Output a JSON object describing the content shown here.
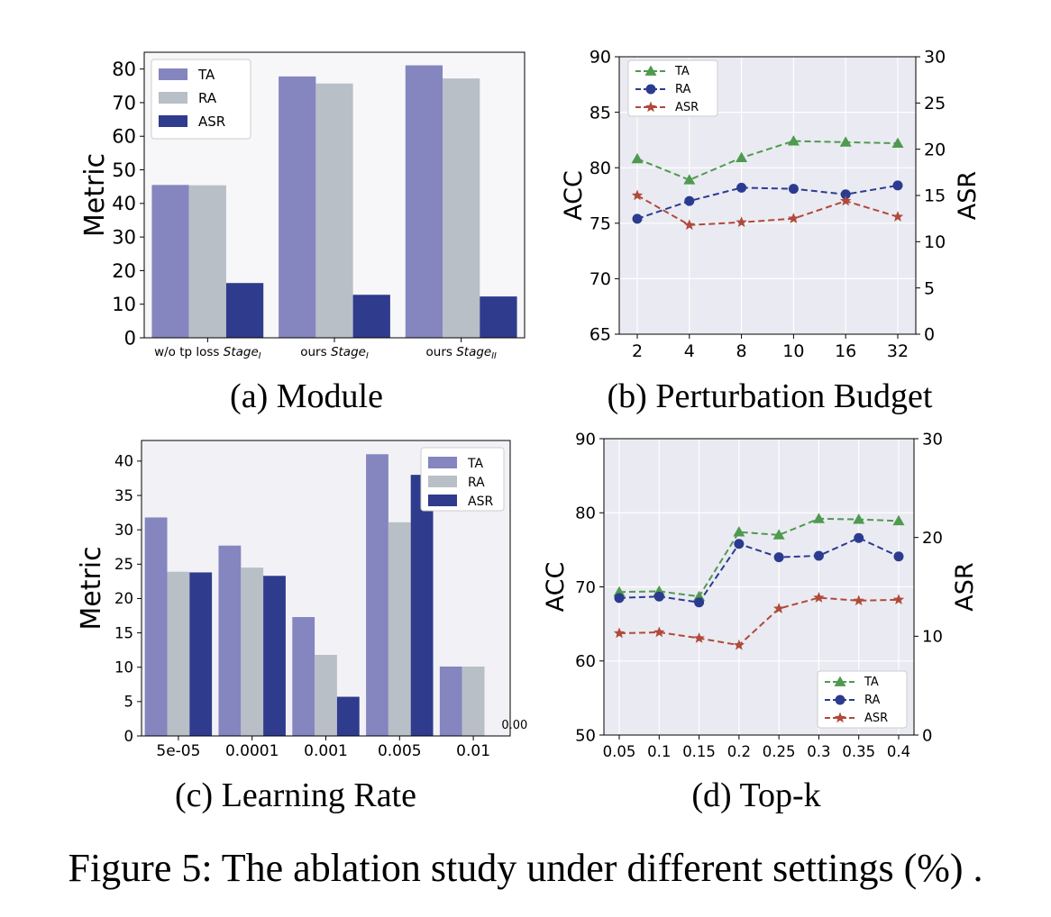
{
  "figure_caption": "Figure 5: The ablation study under different settings (%) .",
  "colors": {
    "ta_bar": "#8585bf",
    "ra_bar": "#b8bfc6",
    "asr_bar": "#2f3b8c",
    "ta_line": "#4f9a4f",
    "ra_line": "#2b3b8f",
    "asr_line": "#b04a3a",
    "line_bg": "#eaeaf2",
    "bar_bg_a": "#f7f7f9",
    "bar_bg_c": "#f2f2f6"
  },
  "chart_data": [
    {
      "id": "a",
      "type": "bar",
      "subcaption": "(a) Module",
      "ylabel": "Metric",
      "ylim": [
        0,
        85
      ],
      "yticks": [
        0,
        10,
        20,
        30,
        40,
        50,
        60,
        70,
        80
      ],
      "categories": [
        {
          "base": "w/o tp loss ",
          "italic": "Stage",
          "sub": "I"
        },
        {
          "base": "ours ",
          "italic": "Stage",
          "sub": "I"
        },
        {
          "base": "ours ",
          "italic": "Stage",
          "sub": "II"
        }
      ],
      "series": [
        {
          "name": "TA",
          "values": [
            45.5,
            77.8,
            81.1
          ]
        },
        {
          "name": "RA",
          "values": [
            45.4,
            75.7,
            77.2
          ]
        },
        {
          "name": "ASR",
          "values": [
            16.3,
            12.8,
            12.3
          ]
        }
      ],
      "legend": "top-left",
      "grid": false
    },
    {
      "id": "b",
      "type": "line",
      "subcaption": "(b) Perturbation Budget",
      "ylabel": "ACC",
      "y2label": "ASR",
      "x": [
        "2",
        "4",
        "8",
        "10",
        "16",
        "32"
      ],
      "ylim": [
        65,
        90
      ],
      "yticks": [
        65,
        70,
        75,
        80,
        85,
        90
      ],
      "y2lim": [
        0,
        30
      ],
      "y2ticks": [
        0,
        5,
        10,
        15,
        20,
        25,
        30
      ],
      "series": [
        {
          "name": "TA",
          "axis": "left",
          "marker": "triangle",
          "values": [
            80.8,
            78.9,
            80.9,
            82.4,
            82.3,
            82.2
          ]
        },
        {
          "name": "RA",
          "axis": "left",
          "marker": "circle",
          "values": [
            75.4,
            77.0,
            78.2,
            78.1,
            77.6,
            78.4
          ]
        },
        {
          "name": "ASR",
          "axis": "right",
          "marker": "star",
          "values": [
            15.0,
            11.8,
            12.1,
            12.5,
            14.4,
            12.7
          ]
        }
      ],
      "legend": "top-left",
      "grid": true
    },
    {
      "id": "c",
      "type": "bar",
      "subcaption": "(c) Learning Rate",
      "ylabel": "Metric",
      "ylim": [
        0,
        43
      ],
      "yticks": [
        0,
        5,
        10,
        15,
        20,
        25,
        30,
        35,
        40
      ],
      "categories": [
        "5e-05",
        "0.0001",
        "0.001",
        "0.005",
        "0.01"
      ],
      "series": [
        {
          "name": "TA",
          "values": [
            31.8,
            27.7,
            17.3,
            41.0,
            10.1
          ]
        },
        {
          "name": "RA",
          "values": [
            23.9,
            24.5,
            11.8,
            31.1,
            10.1
          ]
        },
        {
          "name": "ASR",
          "values": [
            23.8,
            23.3,
            5.7,
            38.0,
            0.0
          ]
        }
      ],
      "annotation": "0.00",
      "legend": "top-right",
      "grid": false
    },
    {
      "id": "d",
      "type": "line",
      "subcaption": "(d) Top-k",
      "ylabel": "ACC",
      "y2label": "ASR",
      "x": [
        "0.05",
        "0.1",
        "0.15",
        "0.2",
        "0.25",
        "0.3",
        "0.35",
        "0.4"
      ],
      "ylim": [
        50,
        90
      ],
      "yticks": [
        50,
        60,
        70,
        80,
        90
      ],
      "y2lim": [
        0,
        30
      ],
      "y2ticks": [
        0,
        10,
        20,
        30
      ],
      "series": [
        {
          "name": "TA",
          "axis": "left",
          "marker": "triangle",
          "values": [
            69.3,
            69.4,
            68.7,
            77.4,
            77.0,
            79.2,
            79.1,
            78.9
          ]
        },
        {
          "name": "RA",
          "axis": "left",
          "marker": "circle",
          "values": [
            68.5,
            68.7,
            67.9,
            75.8,
            74.0,
            74.2,
            76.6,
            74.1
          ]
        },
        {
          "name": "ASR",
          "axis": "right",
          "marker": "star",
          "values": [
            10.3,
            10.4,
            9.8,
            9.1,
            12.8,
            13.9,
            13.6,
            13.7
          ]
        }
      ],
      "legend": "bottom-right",
      "grid": true
    }
  ]
}
